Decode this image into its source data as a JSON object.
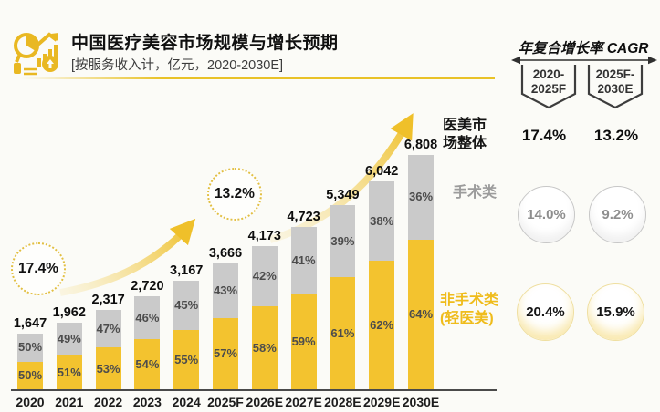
{
  "header": {
    "title": "中国医疗美容市场规模与增长预期",
    "subtitle": "[按服务收入计，亿元，2020-2030E]"
  },
  "side_labels": {
    "overall": "医美市\n场整体",
    "surgical": "手术类",
    "nonsurgical": "非手术类\n(轻医美)"
  },
  "cagr_panel": {
    "title": "年复合增长率 CAGR",
    "periods": [
      "2020-\n2025F",
      "2025F-\n2030E"
    ],
    "overall": [
      "17.4%",
      "13.2%"
    ],
    "surgical": [
      "14.0%",
      "9.2%"
    ],
    "nonsurgical": [
      "20.4%",
      "15.9%"
    ]
  },
  "chart_data": {
    "type": "bar",
    "stacked": true,
    "title": "中国医疗美容市场规模与增长预期",
    "unit": "亿元",
    "categories": [
      "2020",
      "2021",
      "2022",
      "2023",
      "2024",
      "2025F",
      "2026E",
      "2027E",
      "2028E",
      "2029E",
      "2030E"
    ],
    "totals": [
      1647,
      1962,
      2317,
      2720,
      3167,
      3666,
      4173,
      4723,
      5349,
      6042,
      6808
    ],
    "total_labels": [
      "1,647",
      "1,962",
      "2,317",
      "2,720",
      "3,167",
      "3,666",
      "4,173",
      "4,723",
      "5,349",
      "6,042",
      "6,808"
    ],
    "series": [
      {
        "name": "非手术类(轻医美)",
        "color": "#F3C32F",
        "share_pct": [
          50,
          51,
          53,
          54,
          55,
          57,
          58,
          59,
          61,
          62,
          64
        ]
      },
      {
        "name": "手术类",
        "color": "#CACACA",
        "share_pct": [
          50,
          49,
          47,
          46,
          45,
          43,
          42,
          41,
          39,
          38,
          36
        ]
      }
    ],
    "annotations": [
      {
        "text": "17.4%"
      },
      {
        "text": "13.2%"
      }
    ],
    "ylim": [
      0,
      7000
    ],
    "grid": false,
    "legend_position": "right"
  },
  "colors": {
    "nonsurgical_yellow": "#F3C32F",
    "surgical_gray": "#CACACA",
    "accent_gold": "#E9B822",
    "gray_text": "#8E8E8E"
  }
}
